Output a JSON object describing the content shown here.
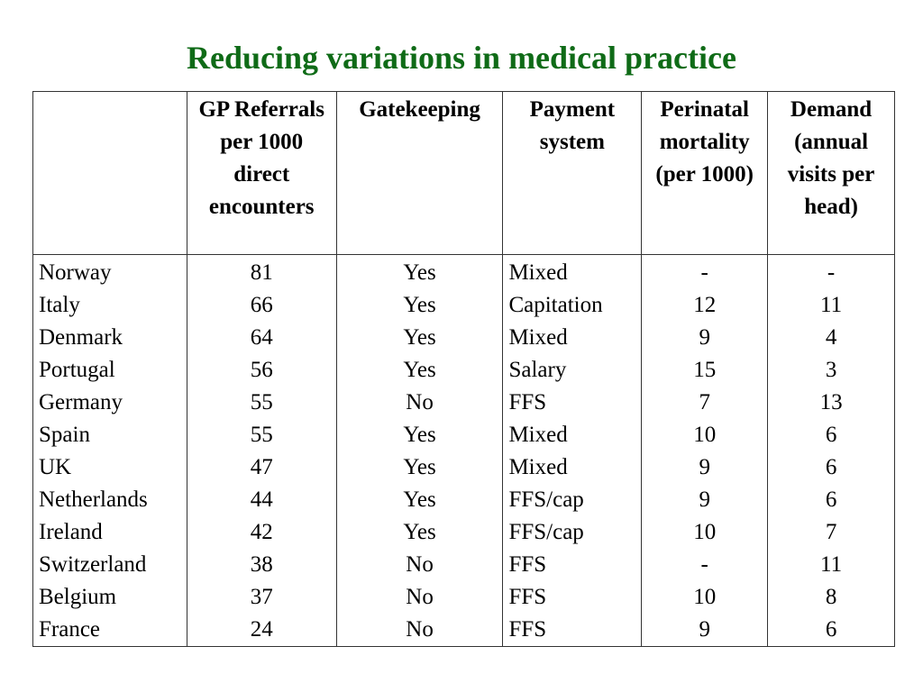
{
  "title": "Reducing variations in medical practice",
  "columns": [
    "",
    "GP Referrals per 1000 direct encounters",
    "Gatekeeping",
    "Payment system",
    "Perinatal mortality (per 1000)",
    "Demand (annual visits per head)"
  ],
  "rows": [
    [
      "Norway",
      "81",
      "Yes",
      "Mixed",
      "-",
      "-"
    ],
    [
      "Italy",
      "66",
      "Yes",
      "Capitation",
      "12",
      "11"
    ],
    [
      "Denmark",
      "64",
      "Yes",
      "Mixed",
      "9",
      "4"
    ],
    [
      "Portugal",
      "56",
      "Yes",
      "Salary",
      "15",
      "3"
    ],
    [
      "Germany",
      "55",
      "No",
      "FFS",
      "7",
      "13"
    ],
    [
      "Spain",
      "55",
      "Yes",
      "Mixed",
      "10",
      "6"
    ],
    [
      "UK",
      "47",
      "Yes",
      "Mixed",
      "9",
      "6"
    ],
    [
      "Netherlands",
      "44",
      "Yes",
      "FFS/cap",
      "9",
      "6"
    ],
    [
      "Ireland",
      "42",
      "Yes",
      "FFS/cap",
      "10",
      "7"
    ],
    [
      "Switzerland",
      "38",
      "No",
      "FFS",
      "-",
      "11"
    ],
    [
      "Belgium",
      "37",
      "No",
      "FFS",
      "10",
      "8"
    ],
    [
      "France",
      "24",
      "No",
      "FFS",
      "9",
      "6"
    ]
  ]
}
